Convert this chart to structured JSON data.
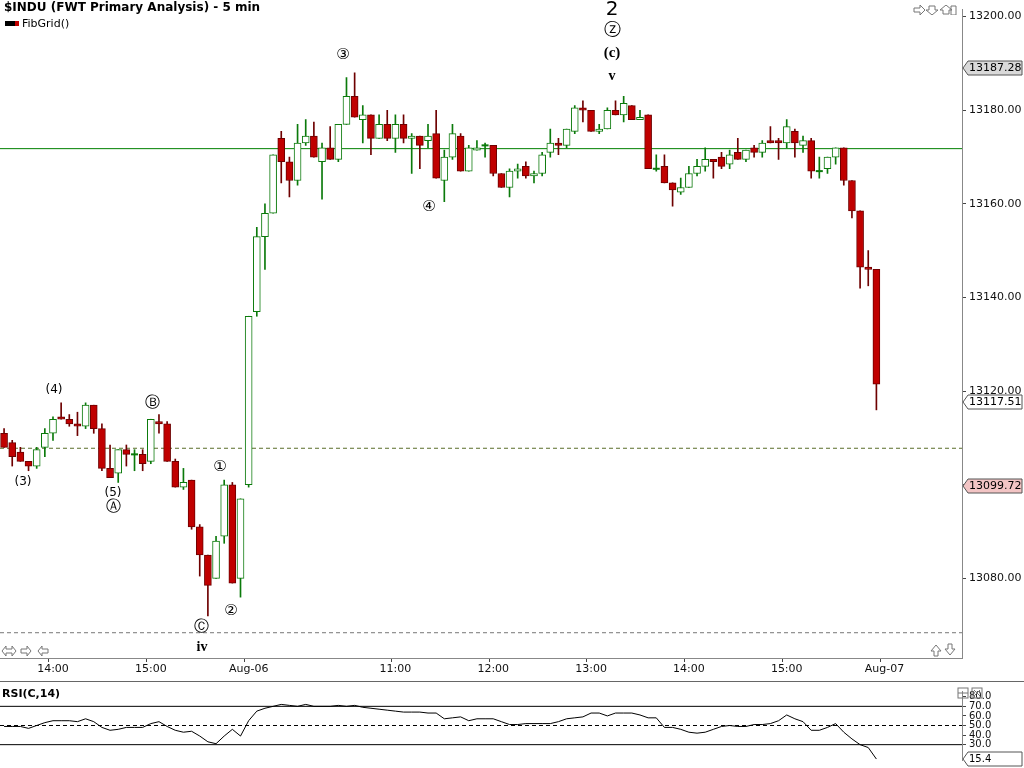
{
  "chart_data": [
    {
      "type": "candlestick",
      "title": "$INDU (FWT Primary Analysis) - 5 min",
      "categories": [
        null,
        null,
        null,
        null,
        null,
        null,
        "14:00",
        null,
        null,
        null,
        null,
        null,
        null,
        null,
        null,
        null,
        null,
        null,
        "15:00",
        null,
        null,
        null,
        null,
        null,
        null,
        null,
        null,
        null,
        null,
        null,
        "Aug-06",
        null,
        null,
        null,
        null,
        null,
        null,
        null,
        null,
        null,
        null,
        null,
        null,
        null,
        null,
        null,
        null,
        null,
        "11:00",
        null,
        null,
        null,
        null,
        null,
        null,
        null,
        null,
        null,
        null,
        null,
        "12:00",
        null,
        null,
        null,
        null,
        null,
        null,
        null,
        null,
        null,
        null,
        null,
        "13:00",
        null,
        null,
        null,
        null,
        null,
        null,
        null,
        null,
        null,
        null,
        null,
        "14:00",
        null,
        null,
        null,
        null,
        null,
        null,
        null,
        null,
        null,
        null,
        null,
        "15:00",
        null,
        null,
        null,
        null,
        null,
        null,
        null,
        null,
        null,
        null,
        null,
        "Aug-07",
        null,
        null,
        null,
        null,
        null,
        null,
        null,
        null,
        null
      ],
      "ohlc": [
        [
          13111,
          13112,
          13108,
          13108
        ],
        [
          13109,
          13109.5,
          13104,
          13106
        ],
        [
          13107,
          13108,
          13105,
          13105
        ],
        [
          13105,
          13105,
          13103,
          13104
        ],
        [
          13104,
          13108,
          13103.5,
          13107.5
        ],
        [
          13108,
          13112,
          13106,
          13111
        ],
        [
          13111,
          13114.5,
          13109.5,
          13114
        ],
        [
          13114.5,
          13117.5,
          13114,
          13114
        ],
        [
          13114,
          13115,
          13112.5,
          13113
        ],
        [
          13113,
          13115.5,
          13110.5,
          13112.5
        ],
        [
          13112.5,
          13117.5,
          13112,
          13117
        ],
        [
          13117,
          13117,
          13111,
          13112
        ],
        [
          13112,
          13113,
          13103,
          13103.5
        ],
        [
          13103.5,
          13108.5,
          13101.5,
          13101.5
        ],
        [
          13102.5,
          13107.5,
          13100.5,
          13107.5
        ],
        [
          13107.5,
          13108.5,
          13104,
          13106.5
        ],
        [
          13106.5,
          13107.5,
          13103,
          13106.5
        ],
        [
          13106.5,
          13107.5,
          13103,
          13104.5
        ],
        [
          13105,
          13114,
          13104.5,
          13114
        ],
        [
          13113.5,
          13115,
          13111,
          13113
        ],
        [
          13113,
          13113.5,
          13105,
          13105
        ],
        [
          13105,
          13105.5,
          13099.5,
          13099.5
        ],
        [
          13099.5,
          13103.5,
          13099,
          13100.5
        ],
        [
          13101,
          13101,
          13090.5,
          13091
        ],
        [
          13091,
          13091.5,
          13080.5,
          13085
        ],
        [
          13085,
          13085,
          13072,
          13078.5
        ],
        [
          13080,
          13089,
          13080,
          13088
        ],
        [
          13089,
          13101,
          13087.5,
          13100
        ],
        [
          13100,
          13100.5,
          13079,
          13079
        ],
        [
          13080,
          13097,
          13076,
          13097
        ],
        [
          13100,
          13136,
          13099.5,
          13136
        ],
        [
          13137,
          13155,
          13136,
          13153
        ],
        [
          13153,
          13160,
          13146,
          13158
        ],
        [
          13158,
          13170.5,
          13158,
          13170.5
        ],
        [
          13174,
          13175.5,
          13164.5,
          13169
        ],
        [
          13169,
          13170,
          13161.5,
          13165
        ],
        [
          13165,
          13177,
          13164,
          13173
        ],
        [
          13173,
          13178,
          13172.5,
          13174.5
        ],
        [
          13174.5,
          13177.5,
          13170,
          13170
        ],
        [
          13169,
          13173,
          13161,
          13172
        ],
        [
          13172,
          13176.5,
          13169.5,
          13169.5
        ],
        [
          13169.5,
          13177,
          13169,
          13177
        ],
        [
          13177,
          13187,
          13177,
          13183
        ],
        [
          13183,
          13188,
          13178.5,
          13178.5
        ],
        [
          13178,
          13181,
          13173,
          13179
        ],
        [
          13179,
          13179,
          13170.5,
          13174
        ],
        [
          13174,
          13179,
          13174,
          13177
        ],
        [
          13177,
          13180,
          13173.5,
          13174
        ],
        [
          13174,
          13179,
          13171,
          13177
        ],
        [
          13177,
          13179,
          13173,
          13174
        ],
        [
          13174,
          13175,
          13166.5,
          13174.5
        ],
        [
          13174.5,
          13174.5,
          13167.5,
          13172.5
        ],
        [
          13173.5,
          13177,
          13172,
          13174.5
        ],
        [
          13175,
          13180,
          13165.5,
          13165.5
        ],
        [
          13165,
          13171.5,
          13160.5,
          13170
        ],
        [
          13170,
          13177,
          13169.5,
          13175
        ],
        [
          13174.5,
          13175,
          13167,
          13167
        ],
        [
          13167,
          13172.5,
          13167,
          13172
        ],
        [
          13171.5,
          13173.5,
          13171.5,
          13172
        ],
        [
          13172.5,
          13173,
          13170,
          13172.5
        ],
        [
          13172.5,
          13172.5,
          13166,
          13166.5
        ],
        [
          13166.5,
          13166.5,
          13163.5,
          13163.5
        ],
        [
          13163.5,
          13167.5,
          13161.5,
          13167
        ],
        [
          13167,
          13168.5,
          13165.5,
          13167.5
        ],
        [
          13168,
          13169,
          13165.5,
          13166
        ],
        [
          13166,
          13167,
          13164.5,
          13166.5
        ],
        [
          13166.5,
          13171,
          13166,
          13170.5
        ],
        [
          13171,
          13176,
          13170,
          13173
        ],
        [
          13173,
          13174,
          13170.5,
          13172.5
        ],
        [
          13172.5,
          13176,
          13172,
          13176
        ],
        [
          13175.5,
          13181,
          13175,
          13180.5
        ],
        [
          13180.5,
          13182,
          13177.5,
          13180
        ],
        [
          13180,
          13180,
          13175.5,
          13175.5
        ],
        [
          13175.5,
          13177,
          13175,
          13176
        ],
        [
          13176,
          13180.5,
          13176,
          13180
        ],
        [
          13180,
          13182,
          13179,
          13179
        ],
        [
          13179,
          13183,
          13177.5,
          13181.5
        ],
        [
          13181,
          13181,
          13178,
          13178
        ],
        [
          13178,
          13180,
          13178,
          13178.5
        ],
        [
          13179,
          13179,
          13167.5,
          13167.5
        ],
        [
          13167.5,
          13170.5,
          13167,
          13167.5
        ],
        [
          13168,
          13170.5,
          13164.5,
          13164.5
        ],
        [
          13164.5,
          13164.5,
          13159.5,
          13163
        ],
        [
          13162.5,
          13165.5,
          13162,
          13163.5
        ],
        [
          13163.5,
          13168,
          13163.5,
          13166.5
        ],
        [
          13166.5,
          13169.5,
          13166,
          13168
        ],
        [
          13168,
          13172,
          13167,
          13169.5
        ],
        [
          13169.5,
          13169.5,
          13165.5,
          13169
        ],
        [
          13170,
          13171,
          13167.5,
          13168
        ],
        [
          13168.5,
          13171.5,
          13167.5,
          13170.5
        ],
        [
          13171,
          13174,
          13169.5,
          13169.5
        ],
        [
          13169.5,
          13171.5,
          13169,
          13171.5
        ],
        [
          13172,
          13172.5,
          13170,
          13171
        ],
        [
          13171,
          13173.5,
          13170,
          13173
        ],
        [
          13173.5,
          13176.5,
          13173,
          13173
        ],
        [
          13173.5,
          13174,
          13169.5,
          13173
        ],
        [
          13173,
          13178,
          13172,
          13176.5
        ],
        [
          13175.5,
          13176,
          13170,
          13173
        ],
        [
          13172.5,
          13174.5,
          13171,
          13173.5
        ],
        [
          13173.5,
          13174,
          13165.5,
          13167
        ],
        [
          13167,
          13170,
          13165.5,
          13167
        ],
        [
          13167.5,
          13170,
          13166.5,
          13170
        ],
        [
          13170,
          13172,
          13168.5,
          13172
        ],
        [
          13172,
          13172,
          13164,
          13165
        ],
        [
          13165,
          13165,
          13157,
          13158.5
        ],
        [
          13158.5,
          13158.5,
          13142,
          13146.5
        ],
        [
          13146.5,
          13150,
          13142.5,
          13146
        ],
        [
          13146,
          13146,
          13116,
          13121.5
        ],
        null,
        null,
        null,
        null,
        null,
        null,
        null,
        null,
        null,
        null
      ],
      "ylim": [
        13063,
        13201.5
      ],
      "yticks": [
        {
          "value": 13080,
          "label": "13080.00"
        },
        {
          "value": 13100,
          "label": null
        },
        {
          "value": 13120,
          "label": "13120.00"
        },
        {
          "value": 13140,
          "label": "13140.00"
        },
        {
          "value": 13160,
          "label": "13160.00"
        },
        {
          "value": 13180,
          "label": "13180.00"
        },
        {
          "value": 13200,
          "label": "13200.00"
        }
      ],
      "ref_lines": [
        {
          "axis": "y",
          "value": 13171.8,
          "color": "#008000",
          "line_style": "solid"
        },
        {
          "axis": "y",
          "value": 13107.8,
          "color": "#5a6e2a",
          "line_style": "dashed"
        },
        {
          "axis": "y",
          "value": 13068.4,
          "color": "#777777",
          "line_style": "dashed"
        }
      ],
      "annotations": [
        "FibGrid()",
        "(4)",
        "(3)",
        "(5)",
        "Ⓐ",
        "Ⓑ",
        "①",
        "②",
        "Ⓒ",
        "iv",
        "③",
        "④",
        "2",
        "ⓩ",
        "(c)",
        "v",
        "13187.28",
        "13117.51",
        "13099.72"
      ]
    },
    {
      "type": "line",
      "categories": [
        null,
        null,
        null,
        null,
        null,
        null,
        null,
        null,
        null,
        null,
        null,
        null,
        null,
        null,
        null,
        null,
        null,
        null,
        null,
        null,
        null,
        null,
        null,
        null,
        null,
        null,
        null,
        null,
        null,
        null,
        null,
        null,
        null,
        null,
        null,
        null,
        null,
        null,
        null,
        null,
        null,
        null,
        null,
        null,
        null,
        null,
        null,
        null,
        null,
        null,
        null,
        null,
        null,
        null,
        null,
        null,
        null,
        null,
        null,
        null,
        null,
        null,
        null,
        null,
        null,
        null,
        null,
        null,
        null,
        null,
        null,
        null,
        null,
        null,
        null,
        null,
        null,
        null,
        null,
        null,
        null,
        null,
        null,
        null,
        null,
        null,
        null,
        null,
        null,
        null,
        null,
        null,
        null,
        null,
        null,
        null,
        null,
        null,
        null,
        null,
        null,
        null,
        null,
        null,
        null,
        null,
        null,
        null,
        null,
        null,
        null,
        null,
        null,
        null,
        null,
        null,
        null,
        null
      ],
      "series": [
        {
          "color": "#000000",
          "values": [
            49,
            49,
            49,
            47,
            50,
            53,
            55,
            55,
            55,
            54,
            57,
            54,
            48,
            45,
            46,
            48,
            48,
            48,
            52,
            54,
            49,
            45,
            43,
            44,
            39,
            33,
            31,
            39,
            46,
            39,
            55,
            65,
            68,
            70,
            72,
            71,
            70,
            72,
            70,
            70,
            70,
            71,
            70,
            71,
            69,
            68,
            67,
            66,
            65,
            64,
            64,
            64,
            63,
            63,
            57,
            58,
            59,
            55,
            57,
            57,
            57,
            54,
            51,
            51,
            52,
            52,
            52,
            52,
            54,
            57,
            58,
            59,
            63,
            63,
            60,
            63,
            63,
            63,
            61,
            58,
            58,
            48,
            48,
            46,
            43,
            42,
            43,
            46,
            49,
            50,
            49,
            49,
            51,
            51,
            52,
            55,
            61,
            57,
            54,
            45,
            45,
            48,
            52,
            43,
            36,
            30,
            27,
            15,
            null,
            null,
            null,
            null,
            null,
            null,
            null,
            null,
            null,
            null
          ]
        }
      ],
      "ylim": [
        14,
        86
      ],
      "yticks": [
        {
          "value": 30,
          "label": "30.0"
        },
        {
          "value": 40,
          "label": "40.0"
        },
        {
          "value": 50,
          "label": "50.0"
        },
        {
          "value": 60,
          "label": "60.0"
        },
        {
          "value": 70,
          "label": "70.0"
        },
        {
          "value": 80,
          "label": "80.0"
        }
      ],
      "ref_lines": [
        {
          "axis": "y",
          "value": 70,
          "color": "#000000",
          "line_style": "solid"
        },
        {
          "axis": "y",
          "value": 50,
          "color": "#000000",
          "line_style": "dashed"
        },
        {
          "axis": "y",
          "value": 30,
          "color": "#000000",
          "line_style": "solid"
        }
      ],
      "tick_labels": "y",
      "marker": "none",
      "line_style": "solid",
      "annotations": [
        "RSI(C,14)",
        "15.4"
      ]
    }
  ]
}
